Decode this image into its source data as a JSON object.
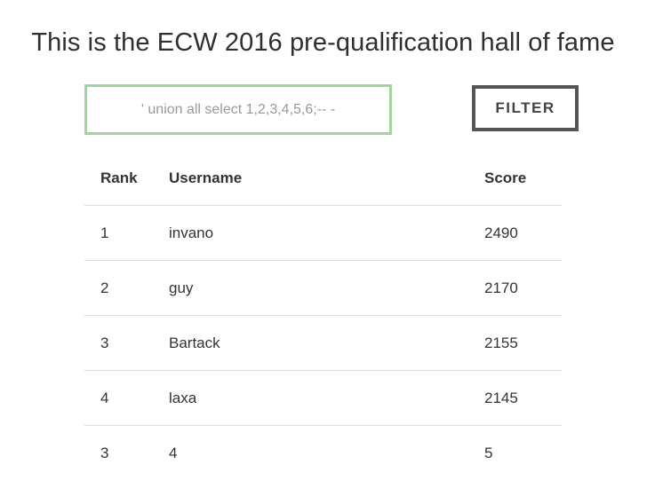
{
  "page": {
    "title": "This is the ECW 2016 pre-qualification hall of fame"
  },
  "filter": {
    "input_value": "' union all select 1,2,3,4,5,6;-- -",
    "button_label": "FILTER"
  },
  "table": {
    "headers": {
      "rank": "Rank",
      "username": "Username",
      "score": "Score"
    },
    "rows": [
      {
        "rank": "1",
        "username": "invano",
        "score": "2490"
      },
      {
        "rank": "2",
        "username": "guy",
        "score": "2170"
      },
      {
        "rank": "3",
        "username": "Bartack",
        "score": "2155"
      },
      {
        "rank": "4",
        "username": "laxa",
        "score": "2145"
      },
      {
        "rank": "3",
        "username": "4",
        "score": "5"
      }
    ]
  },
  "colors": {
    "input_border": "#a3d39c",
    "button_border": "#555555",
    "row_divider": "#dddddd",
    "text": "#333333"
  }
}
